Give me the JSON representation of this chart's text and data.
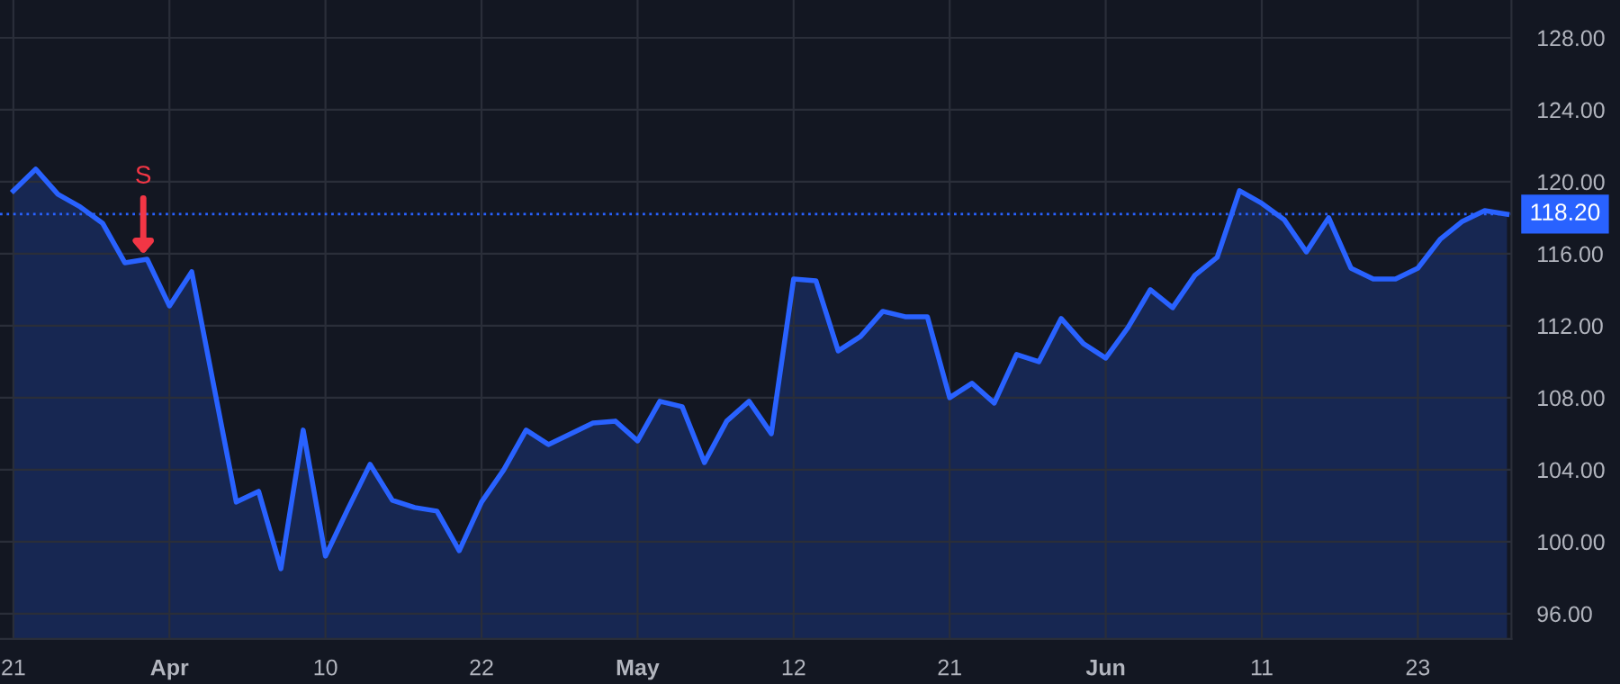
{
  "chart_data": {
    "type": "area",
    "categories": [
      "21",
      null,
      null,
      null,
      null,
      null,
      null,
      "Apr",
      null,
      null,
      null,
      null,
      null,
      null,
      "10",
      null,
      null,
      null,
      null,
      null,
      null,
      "22",
      null,
      null,
      null,
      null,
      null,
      null,
      "May",
      null,
      null,
      null,
      null,
      null,
      null,
      "12",
      null,
      null,
      null,
      null,
      null,
      null,
      "21",
      null,
      null,
      null,
      null,
      null,
      null,
      "Jun",
      null,
      null,
      null,
      null,
      null,
      null,
      "11",
      null,
      null,
      null,
      null,
      null,
      null,
      "23",
      null,
      null,
      null,
      null
    ],
    "series": [
      {
        "color": "#2962ff",
        "values": [
          119.5,
          120.7,
          119.3,
          118.6,
          117.7,
          115.5,
          115.7,
          113.1,
          115.0,
          108.6,
          102.2,
          102.8,
          98.5,
          106.2,
          99.2,
          101.8,
          104.3,
          102.3,
          101.9,
          101.7,
          99.5,
          102.2,
          104.0,
          106.2,
          105.4,
          106.0,
          106.6,
          106.7,
          105.6,
          107.8,
          107.5,
          104.4,
          106.7,
          107.8,
          106.0,
          114.6,
          114.5,
          110.6,
          111.4,
          112.8,
          112.5,
          112.5,
          108.0,
          108.8,
          107.7,
          110.4,
          110.0,
          112.4,
          111.0,
          110.2,
          111.9,
          114.0,
          113.0,
          114.8,
          115.8,
          119.5,
          118.8,
          117.9,
          116.1,
          118.0,
          115.2,
          114.6,
          114.6,
          115.2,
          116.8,
          117.8,
          118.4,
          118.2
        ]
      }
    ],
    "ylim": [
      94.6,
      130.1
    ],
    "yticks": [
      {
        "value": 96,
        "label": "96.00"
      },
      {
        "value": 100,
        "label": "100.00"
      },
      {
        "value": 104,
        "label": "104.00"
      },
      {
        "value": 108,
        "label": "108.00"
      },
      {
        "value": 112,
        "label": "112.00"
      },
      {
        "value": 116,
        "label": "116.00"
      },
      {
        "value": 120,
        "label": "120.00"
      },
      {
        "value": 124,
        "label": "124.00"
      },
      {
        "value": 128,
        "label": "128.00"
      }
    ],
    "ref_lines": [
      {
        "axis": "y",
        "value": 118.2,
        "label": "118.20",
        "color": "#2962ff",
        "line_style": "dotted"
      }
    ],
    "annotations": [
      "S"
    ],
    "grid": true,
    "legend": false,
    "marker": "none",
    "line_style": "solid"
  }
}
